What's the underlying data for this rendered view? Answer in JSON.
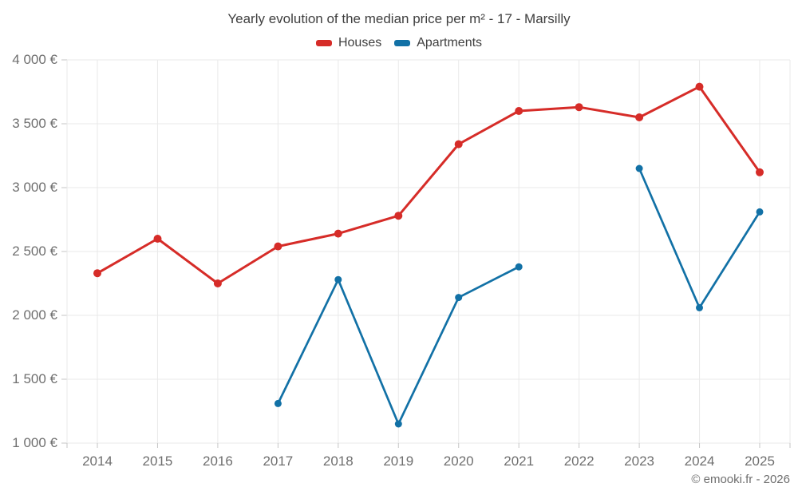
{
  "title": "Yearly evolution of the median price per m² - 17 - Marsilly",
  "legend": {
    "items": [
      {
        "label": "Houses",
        "color": "#d62c28"
      },
      {
        "label": "Apartments",
        "color": "#1271a6"
      }
    ]
  },
  "footer": {
    "credit": "© emooki.fr - 2026"
  },
  "colors": {
    "grid": "#e9e9e9",
    "tick": "#c6c6c6",
    "axis_text": "#6f6f6f",
    "title_text": "#3f3f3f",
    "background": "#ffffff"
  },
  "chart_data": {
    "type": "line",
    "title": "Yearly evolution of the median price per m² - 17 - Marsilly",
    "categories": [
      "2014",
      "2015",
      "2016",
      "2017",
      "2018",
      "2019",
      "2020",
      "2021",
      "2022",
      "2023",
      "2024",
      "2025"
    ],
    "series": [
      {
        "name": "Houses",
        "color": "#d62c28",
        "line_width": 3,
        "marker_radius": 5,
        "values": [
          2330,
          2600,
          2250,
          2540,
          2640,
          2780,
          3340,
          3600,
          3630,
          3550,
          3790,
          3120
        ]
      },
      {
        "name": "Apartments",
        "color": "#1271a6",
        "line_width": 2.7,
        "marker_radius": 4.5,
        "values": [
          null,
          null,
          null,
          1310,
          2280,
          1150,
          2140,
          2380,
          null,
          3150,
          2060,
          2810
        ]
      }
    ],
    "ylim": [
      1000,
      4000
    ],
    "y_ticks": [
      {
        "value": 4000,
        "label": "4 000 €"
      },
      {
        "value": 3500,
        "label": "3 500 €"
      },
      {
        "value": 3000,
        "label": "3 000 €"
      },
      {
        "value": 2500,
        "label": "2 500 €"
      },
      {
        "value": 2000,
        "label": "2 000 €"
      },
      {
        "value": 1500,
        "label": "1 500 €"
      },
      {
        "value": 1000,
        "label": "1 000 €"
      }
    ],
    "grid": true,
    "legend_position": "top",
    "currency": "€",
    "unit": "price per m²"
  }
}
